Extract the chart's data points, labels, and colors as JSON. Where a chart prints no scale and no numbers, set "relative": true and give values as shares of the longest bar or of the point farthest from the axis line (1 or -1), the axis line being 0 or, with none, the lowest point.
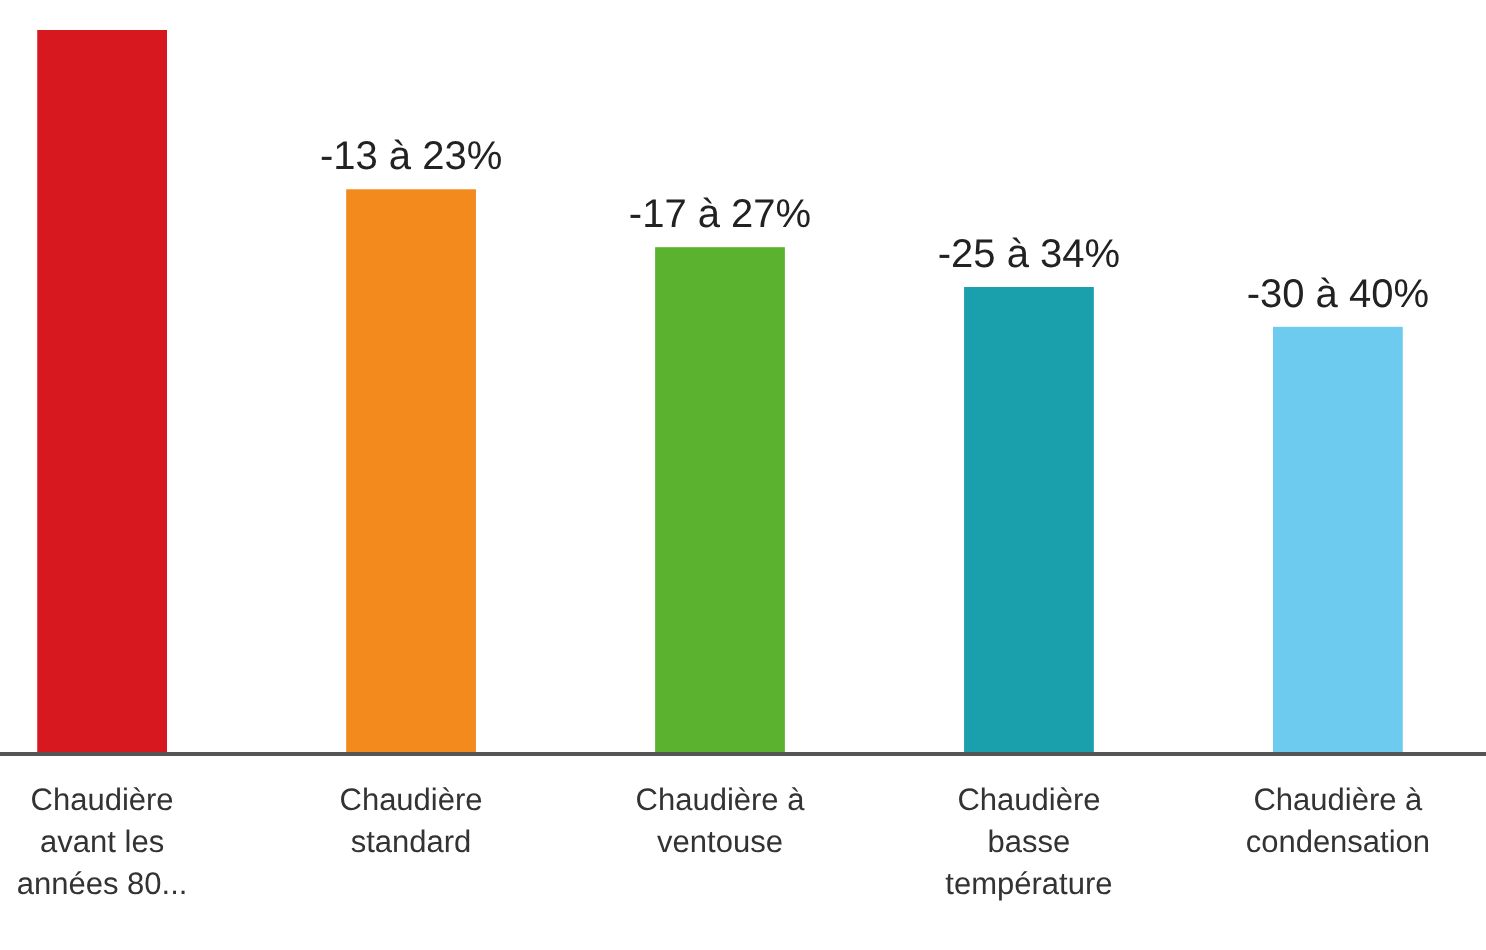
{
  "chart_data": {
    "type": "bar",
    "relative": true,
    "categories": [
      "Chaudière avant les années 80...",
      "Chaudière standard",
      "Chaudière à ventouse",
      "Chaudière basse température",
      "Chaudière à condensation"
    ],
    "values": [
      1,
      0.78,
      0.7,
      0.645,
      0.59
    ],
    "colors": [
      "#d7191f",
      "#f28a1e",
      "#5ab22f",
      "#1aa0ad",
      "#6ccbef"
    ],
    "annotations": [
      {
        "text": "-13 à 23%",
        "x": "Chaudière standard",
        "y": 0.78
      },
      {
        "text": "-17 à 27%",
        "x": "Chaudière à ventouse",
        "y": 0.7
      },
      {
        "text": "-25 à 34%",
        "x": "Chaudière basse température",
        "y": 0.645
      },
      {
        "text": "-30 à 40%",
        "x": "Chaudière à condensation",
        "y": 0.59
      }
    ]
  }
}
